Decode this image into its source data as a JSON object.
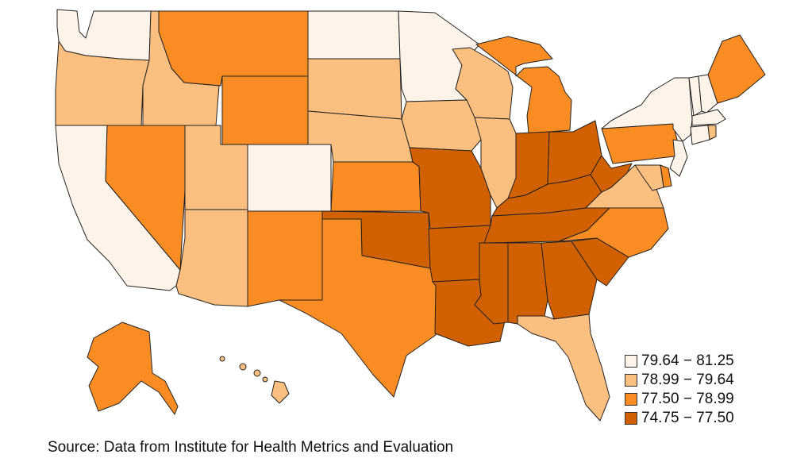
{
  "legend": {
    "items": [
      {
        "label": "79.64 − 81.25",
        "color": "#fef3e8"
      },
      {
        "label": "78.99 − 79.64",
        "color": "#fbbf80"
      },
      {
        "label": "77.50 − 78.99",
        "color": "#f98d24"
      },
      {
        "label": "74.75 − 77.50",
        "color": "#d16000"
      }
    ]
  },
  "source": "Source: Data from Institute for Health Metrics and Evaluation",
  "states": [
    {
      "name": "Washington",
      "bin": 0
    },
    {
      "name": "Oregon",
      "bin": 1
    },
    {
      "name": "California",
      "bin": 0
    },
    {
      "name": "Idaho",
      "bin": 1
    },
    {
      "name": "Nevada",
      "bin": 2
    },
    {
      "name": "Montana",
      "bin": 2
    },
    {
      "name": "Wyoming",
      "bin": 2
    },
    {
      "name": "Utah",
      "bin": 1
    },
    {
      "name": "Arizona",
      "bin": 1
    },
    {
      "name": "Colorado",
      "bin": 0
    },
    {
      "name": "New Mexico",
      "bin": 2
    },
    {
      "name": "North Dakota",
      "bin": 0
    },
    {
      "name": "South Dakota",
      "bin": 1
    },
    {
      "name": "Nebraska",
      "bin": 1
    },
    {
      "name": "Kansas",
      "bin": 2
    },
    {
      "name": "Oklahoma",
      "bin": 3
    },
    {
      "name": "Texas",
      "bin": 2
    },
    {
      "name": "Minnesota",
      "bin": 0
    },
    {
      "name": "Iowa",
      "bin": 1
    },
    {
      "name": "Missouri",
      "bin": 3
    },
    {
      "name": "Arkansas",
      "bin": 3
    },
    {
      "name": "Louisiana",
      "bin": 3
    },
    {
      "name": "Wisconsin",
      "bin": 1
    },
    {
      "name": "Illinois",
      "bin": 1
    },
    {
      "name": "Michigan",
      "bin": 2
    },
    {
      "name": "Indiana",
      "bin": 3
    },
    {
      "name": "Ohio",
      "bin": 3
    },
    {
      "name": "Kentucky",
      "bin": 3
    },
    {
      "name": "Tennessee",
      "bin": 3
    },
    {
      "name": "Mississippi",
      "bin": 3
    },
    {
      "name": "Alabama",
      "bin": 3
    },
    {
      "name": "Georgia",
      "bin": 3
    },
    {
      "name": "Florida",
      "bin": 1
    },
    {
      "name": "South Carolina",
      "bin": 3
    },
    {
      "name": "North Carolina",
      "bin": 2
    },
    {
      "name": "Virginia",
      "bin": 1
    },
    {
      "name": "West Virginia",
      "bin": 3
    },
    {
      "name": "Pennsylvania",
      "bin": 2
    },
    {
      "name": "New York",
      "bin": 0
    },
    {
      "name": "Vermont",
      "bin": 0
    },
    {
      "name": "New Hampshire",
      "bin": 0
    },
    {
      "name": "Maine",
      "bin": 2
    },
    {
      "name": "Massachusetts",
      "bin": 0
    },
    {
      "name": "Connecticut",
      "bin": 0
    },
    {
      "name": "Rhode Island",
      "bin": 1
    },
    {
      "name": "New Jersey",
      "bin": 0
    },
    {
      "name": "Delaware",
      "bin": 2
    },
    {
      "name": "Maryland",
      "bin": 1
    },
    {
      "name": "Alaska",
      "bin": 2
    },
    {
      "name": "Hawaii",
      "bin": 1
    }
  ]
}
